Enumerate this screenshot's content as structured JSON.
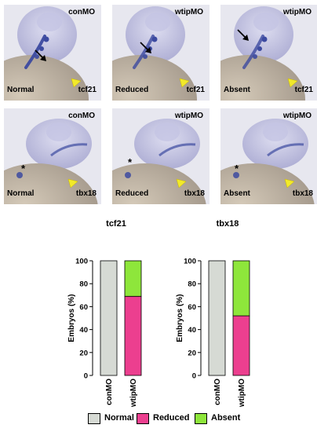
{
  "panels": [
    {
      "condition": "conMO",
      "phenotype": "Normal",
      "marker": "tcf21",
      "marker_type": "arrow"
    },
    {
      "condition": "wtipMO",
      "phenotype": "Reduced",
      "marker": "tcf21",
      "marker_type": "arrow"
    },
    {
      "condition": "wtipMO",
      "phenotype": "Absent",
      "marker": "tcf21",
      "marker_type": "arrow"
    },
    {
      "condition": "conMO",
      "phenotype": "Normal",
      "marker": "tbx18",
      "marker_type": "star",
      "star": "*"
    },
    {
      "condition": "wtipMO",
      "phenotype": "Reduced",
      "marker": "tbx18",
      "marker_type": "star",
      "star": "*"
    },
    {
      "condition": "wtipMO",
      "phenotype": "Absent",
      "marker": "tbx18",
      "marker_type": "star",
      "star": "*"
    }
  ],
  "colors": {
    "Normal": "#d6dad4",
    "Reduced": "#ec3f8f",
    "Absent": "#8ee63b",
    "stain": "#3c4aa0",
    "arrowhead": "#f2ea2a"
  },
  "legend": [
    "Normal",
    "Reduced",
    "Absent"
  ],
  "chart_data": [
    {
      "type": "bar",
      "stacked": true,
      "title": "tcf21",
      "ylabel": "Embryos (%)",
      "ylim": [
        0,
        100
      ],
      "yticks": [
        0,
        20,
        40,
        60,
        80,
        100
      ],
      "categories": [
        "conMO",
        "wtipMO"
      ],
      "series": [
        {
          "name": "Normal",
          "values": [
            100,
            0
          ]
        },
        {
          "name": "Reduced",
          "values": [
            0,
            69
          ]
        },
        {
          "name": "Absent",
          "values": [
            0,
            31
          ]
        }
      ]
    },
    {
      "type": "bar",
      "stacked": true,
      "title": "tbx18",
      "ylabel": "Embryos (%)",
      "ylim": [
        0,
        100
      ],
      "yticks": [
        0,
        20,
        40,
        60,
        80,
        100
      ],
      "categories": [
        "conMO",
        "wtipMO"
      ],
      "series": [
        {
          "name": "Normal",
          "values": [
            100,
            0
          ]
        },
        {
          "name": "Reduced",
          "values": [
            0,
            52
          ]
        },
        {
          "name": "Absent",
          "values": [
            0,
            48
          ]
        }
      ]
    }
  ]
}
